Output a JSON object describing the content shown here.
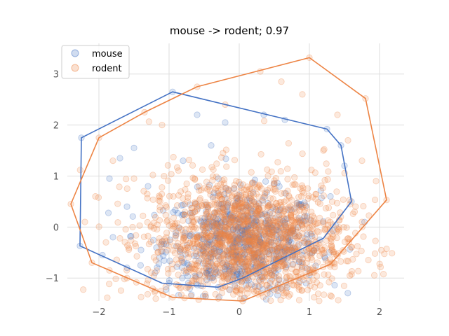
{
  "chart_data": {
    "type": "scatter",
    "title": "mouse -> rodent; 0.97",
    "xlabel": "",
    "ylabel": "",
    "xlim": [
      -2.45,
      2.35
    ],
    "ylim": [
      -1.45,
      3.6
    ],
    "x_ticks": [
      -2,
      -1,
      0,
      1,
      2
    ],
    "y_ticks": [
      -1,
      0,
      1,
      2,
      3
    ],
    "x_tick_labels": [
      "−2",
      "−1",
      "0",
      "1",
      "2"
    ],
    "y_tick_labels": [
      "−1",
      "0",
      "1",
      "2",
      "3"
    ],
    "grid": true,
    "legend": "top-left",
    "series": [
      {
        "name": "mouse",
        "color": "#4472c4",
        "cluster": {
          "center": [
            0.05,
            -0.3
          ],
          "spread": [
            0.55,
            0.5
          ],
          "count": 700
        },
        "points": [
          [
            -2.25,
            1.75
          ],
          [
            -2.27,
            -0.37
          ],
          [
            -0.95,
            2.65
          ],
          [
            -0.3,
            -1.18
          ],
          [
            1.6,
            0.5
          ],
          [
            1.45,
            1.6
          ],
          [
            1.25,
            1.92
          ],
          [
            -1.8,
            -0.2
          ],
          [
            -1.85,
            0.95
          ],
          [
            -1.7,
            1.35
          ],
          [
            -1.5,
            1.55
          ],
          [
            -1.6,
            0.4
          ],
          [
            -1.4,
            -0.45
          ],
          [
            -1.2,
            -0.9
          ],
          [
            -1.0,
            -1.1
          ],
          [
            -0.6,
            2.2
          ],
          [
            -0.4,
            1.6
          ],
          [
            -0.2,
            2.05
          ],
          [
            0.35,
            2.2
          ],
          [
            0.65,
            2.1
          ],
          [
            0.1,
            -1.05
          ],
          [
            0.5,
            -0.85
          ],
          [
            0.9,
            -0.55
          ],
          [
            1.15,
            -0.25
          ],
          [
            1.3,
            0.6
          ],
          [
            1.5,
            1.2
          ],
          [
            -1.6,
            -0.8
          ],
          [
            -1.95,
            -0.55
          ],
          [
            -1.3,
            0.8
          ],
          [
            -0.8,
            1.3
          ]
        ],
        "hull": [
          [
            -2.25,
            1.75
          ],
          [
            -0.95,
            2.65
          ],
          [
            1.25,
            1.92
          ],
          [
            1.45,
            1.6
          ],
          [
            1.6,
            0.5
          ],
          [
            1.2,
            -0.22
          ],
          [
            0.05,
            -1.0
          ],
          [
            -0.3,
            -1.18
          ],
          [
            -1.1,
            -1.1
          ],
          [
            -2.27,
            -0.37
          ]
        ]
      },
      {
        "name": "rodent",
        "color": "#ed8444",
        "cluster": {
          "center": [
            0.1,
            -0.25
          ],
          "spread": [
            0.7,
            0.65
          ],
          "count": 1600
        },
        "points": [
          [
            -2.4,
            0.45
          ],
          [
            -2.0,
            1.75
          ],
          [
            -2.1,
            -0.7
          ],
          [
            -1.35,
            2.25
          ],
          [
            -0.6,
            2.75
          ],
          [
            1.0,
            3.32
          ],
          [
            1.8,
            2.52
          ],
          [
            2.1,
            0.53
          ],
          [
            1.3,
            -0.73
          ],
          [
            0.05,
            -1.45
          ],
          [
            -0.95,
            -1.38
          ],
          [
            -1.6,
            -1.0
          ],
          [
            0.3,
            3.05
          ],
          [
            0.6,
            2.85
          ],
          [
            1.4,
            2.2
          ],
          [
            1.55,
            1.7
          ],
          [
            1.75,
            1.3
          ],
          [
            1.95,
            0.9
          ],
          [
            1.75,
            0.1
          ],
          [
            1.6,
            -0.4
          ],
          [
            0.85,
            -1.1
          ],
          [
            0.4,
            -1.3
          ],
          [
            -0.3,
            -1.4
          ],
          [
            -1.2,
            -1.25
          ],
          [
            -1.85,
            -0.85
          ],
          [
            -2.2,
            0.1
          ],
          [
            -2.05,
            0.6
          ],
          [
            -1.8,
            1.3
          ],
          [
            -1.1,
            2.0
          ],
          [
            -0.2,
            2.4
          ],
          [
            0.9,
            2.6
          ],
          [
            1.2,
            1.5
          ],
          [
            -1.5,
            0.95
          ],
          [
            -1.9,
            -0.3
          ],
          [
            0.95,
            -0.95
          ]
        ],
        "hull": [
          [
            -2.4,
            0.45
          ],
          [
            -2.0,
            1.75
          ],
          [
            -1.35,
            2.25
          ],
          [
            -0.6,
            2.75
          ],
          [
            1.0,
            3.32
          ],
          [
            1.8,
            2.52
          ],
          [
            2.1,
            0.53
          ],
          [
            1.3,
            -0.73
          ],
          [
            0.05,
            -1.45
          ],
          [
            -0.95,
            -1.38
          ],
          [
            -2.1,
            -0.7
          ]
        ]
      }
    ]
  }
}
